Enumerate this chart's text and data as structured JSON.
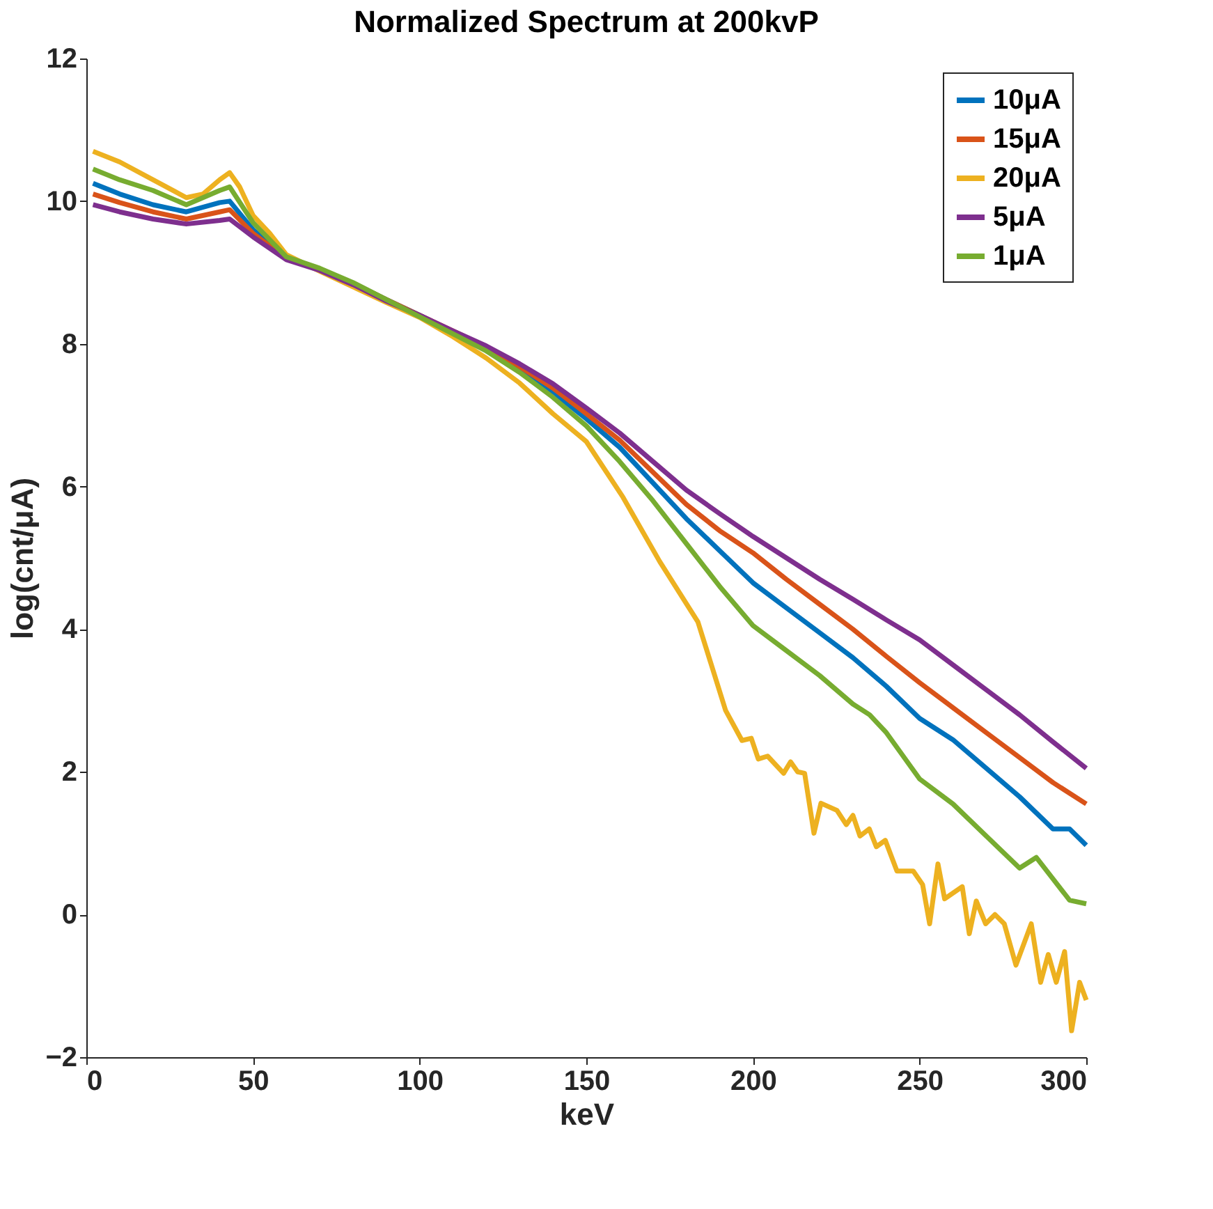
{
  "chart_data": {
    "type": "line",
    "title": "Normalized Spectrum at 200kvP",
    "xlabel": "keV",
    "ylabel": "log(cnt/μA)",
    "xlim": [
      0,
      300
    ],
    "xticks": [
      0,
      50,
      100,
      150,
      200,
      250,
      300
    ],
    "ylim": [
      -2,
      12
    ],
    "yticks": [
      -2,
      0,
      2,
      4,
      6,
      8,
      10,
      12
    ],
    "grid": false,
    "legend": "top right",
    "line_style": "solid",
    "marker": "none",
    "series": [
      {
        "name": "10μA",
        "color": "#0072bd",
        "x": [
          2,
          10,
          20,
          30,
          40,
          43,
          50,
          60,
          70,
          80,
          90,
          100,
          110,
          120,
          130,
          140,
          150,
          160,
          170,
          180,
          190,
          200,
          210,
          220,
          230,
          240,
          250,
          260,
          270,
          280,
          290,
          295,
          300
        ],
        "values": [
          10.25,
          10.1,
          9.95,
          9.85,
          9.98,
          10.0,
          9.6,
          9.2,
          9.05,
          8.85,
          8.62,
          8.4,
          8.17,
          7.94,
          7.65,
          7.32,
          6.95,
          6.55,
          6.05,
          5.55,
          5.1,
          4.65,
          4.3,
          3.95,
          3.6,
          3.2,
          2.75,
          2.45,
          2.05,
          1.65,
          1.2,
          1.2,
          0.97
        ]
      },
      {
        "name": "15μA",
        "color": "#d95319",
        "x": [
          2,
          10,
          20,
          30,
          40,
          43,
          50,
          60,
          70,
          80,
          90,
          100,
          110,
          120,
          130,
          140,
          150,
          160,
          170,
          180,
          190,
          200,
          210,
          220,
          230,
          240,
          250,
          260,
          270,
          280,
          290,
          300
        ],
        "values": [
          10.1,
          9.98,
          9.85,
          9.75,
          9.85,
          9.88,
          9.55,
          9.2,
          9.05,
          8.85,
          8.62,
          8.4,
          8.18,
          7.96,
          7.68,
          7.38,
          7.02,
          6.65,
          6.2,
          5.75,
          5.38,
          5.07,
          4.7,
          4.35,
          4.0,
          3.62,
          3.25,
          2.9,
          2.55,
          2.2,
          1.85,
          1.55
        ]
      },
      {
        "name": "20μA",
        "color": "#edb120",
        "x": [
          2,
          10,
          20,
          30,
          35,
          40,
          43,
          46,
          50,
          55,
          60,
          70,
          80,
          90,
          100,
          110,
          120,
          130,
          140,
          150,
          161,
          172,
          183.5,
          191.8,
          196.7,
          199.5,
          201.6,
          204.4,
          209.2,
          211.3,
          213.4,
          215.5,
          218.3,
          220.4,
          225.2,
          228,
          230,
          232.1,
          234.9,
          237,
          239.7,
          243.2,
          248.1,
          250.9,
          253,
          255.5,
          257.5,
          262.8,
          264.9,
          267,
          269.8,
          272.6,
          275.4,
          278.9,
          283.5,
          286.3,
          288.6,
          291,
          293.5,
          295.6,
          298,
          300
        ],
        "values": [
          10.7,
          10.55,
          10.3,
          10.05,
          10.1,
          10.3,
          10.4,
          10.2,
          9.8,
          9.55,
          9.25,
          9.02,
          8.8,
          8.58,
          8.37,
          8.1,
          7.8,
          7.45,
          7.02,
          6.63,
          5.85,
          4.95,
          4.1,
          2.86,
          2.44,
          2.47,
          2.18,
          2.22,
          1.98,
          2.14,
          2.0,
          1.98,
          1.14,
          1.56,
          1.46,
          1.26,
          1.39,
          1.1,
          1.2,
          0.95,
          1.04,
          0.61,
          0.61,
          0.42,
          -0.13,
          0.71,
          0.22,
          0.39,
          -0.27,
          0.19,
          -0.13,
          0.0,
          -0.13,
          -0.71,
          -0.13,
          -0.95,
          -0.56,
          -0.95,
          -0.52,
          -1.63,
          -0.95,
          -1.2
        ]
      },
      {
        "name": "5μA",
        "color": "#7e2f8e",
        "x": [
          2,
          10,
          20,
          30,
          40,
          43,
          50,
          60,
          70,
          80,
          90,
          100,
          110,
          120,
          130,
          140,
          150,
          160,
          170,
          180,
          190,
          200,
          210,
          220,
          230,
          240,
          250,
          260,
          270,
          280,
          290,
          300
        ],
        "values": [
          9.95,
          9.85,
          9.75,
          9.68,
          9.73,
          9.75,
          9.5,
          9.18,
          9.03,
          8.83,
          8.6,
          8.4,
          8.18,
          7.97,
          7.72,
          7.44,
          7.1,
          6.75,
          6.35,
          5.95,
          5.62,
          5.3,
          5.0,
          4.7,
          4.42,
          4.13,
          3.85,
          3.5,
          3.15,
          2.8,
          2.42,
          2.05
        ]
      },
      {
        "name": "1μA",
        "color": "#77ac30",
        "x": [
          2,
          10,
          20,
          30,
          40,
          43,
          50,
          60,
          70,
          80,
          90,
          100,
          110,
          120,
          130,
          140,
          150,
          160,
          170,
          180,
          190,
          200,
          210,
          220,
          230,
          235,
          240,
          250,
          260,
          270,
          280,
          285,
          290,
          295,
          300
        ],
        "values": [
          10.45,
          10.3,
          10.15,
          9.95,
          10.15,
          10.2,
          9.7,
          9.22,
          9.06,
          8.86,
          8.62,
          8.38,
          8.14,
          7.9,
          7.6,
          7.25,
          6.85,
          6.35,
          5.8,
          5.2,
          4.6,
          4.05,
          3.7,
          3.35,
          2.95,
          2.8,
          2.55,
          1.9,
          1.55,
          1.1,
          0.65,
          0.8,
          0.5,
          0.2,
          0.15
        ]
      }
    ]
  }
}
